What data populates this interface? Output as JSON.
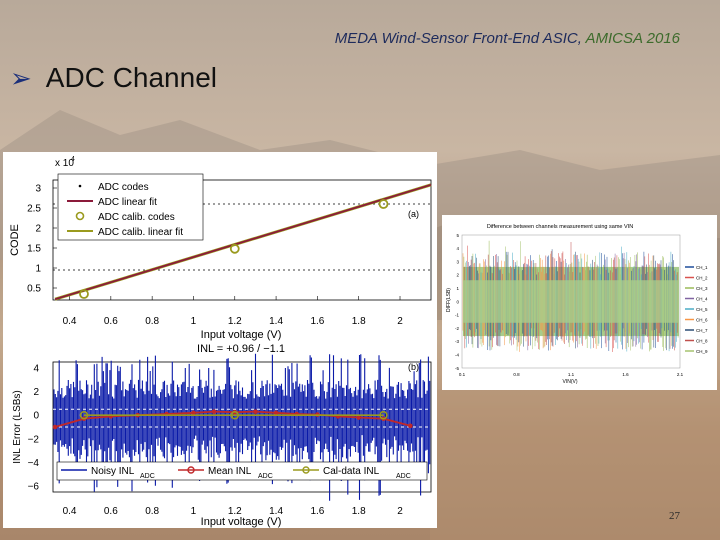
{
  "slide": {
    "header_main": "MEDA Wind-Sensor Front-End ASIC,",
    "header_org": "AMICSA 2016",
    "title_bullet_icon": "arrow-bullet-icon",
    "title": "ADC Channel",
    "page_number": "27"
  },
  "colors": {
    "header_blue": "#1e2b5c",
    "header_green": "#3d6b2c",
    "adc_linear_fit": "#8b1a3a",
    "calib_codes": "#9a9a1e",
    "noisy_inl": "#0a1aa8",
    "mean_inl": "#c0282a"
  },
  "chart_data": [
    {
      "type": "line",
      "panel_label": "(a)",
      "xlabel": "Input voltage (V)",
      "ylabel": "CODE",
      "exponent": "x 10",
      "exponent_power": "4",
      "x_ticks": [
        "0.4",
        "0.6",
        "0.8",
        "1",
        "1.2",
        "1.4",
        "1.6",
        "1.8",
        "2"
      ],
      "y_ticks": [
        "0.5",
        "1",
        "1.5",
        "2",
        "2.5",
        "3"
      ],
      "xlim": [
        0.32,
        2.15
      ],
      "ylim": [
        0.2,
        3.2
      ],
      "inl_text": "INL = +0.96 / −1.1",
      "legend": [
        "ADC codes",
        "ADC linear fit",
        "ADC calib. codes",
        "ADC calib. linear fit"
      ],
      "hlines": [
        0.95,
        2.6
      ],
      "series": [
        {
          "name": "ADC codes",
          "x": [
            0.33,
            2.15
          ],
          "y": [
            0.22,
            3.08
          ]
        },
        {
          "name": "ADC linear fit",
          "x": [
            0.33,
            2.15
          ],
          "y": [
            0.22,
            3.08
          ]
        },
        {
          "name": "ADC calib. codes",
          "x": [
            0.47,
            1.2,
            1.92
          ],
          "y": [
            0.35,
            1.48,
            2.6
          ]
        },
        {
          "name": "ADC calib. linear fit",
          "x": [
            0.33,
            2.15
          ],
          "y": [
            0.22,
            3.08
          ]
        }
      ]
    },
    {
      "type": "line",
      "panel_label": "(b)",
      "xlabel": "Input voltage (V)",
      "ylabel": "INL Error (LSBs)",
      "x_ticks": [
        "0.4",
        "0.6",
        "0.8",
        "1",
        "1.2",
        "1.4",
        "1.6",
        "1.8",
        "2"
      ],
      "y_ticks": [
        "4",
        "2",
        "0",
        "−2",
        "−4",
        "−6"
      ],
      "xlim": [
        0.32,
        2.15
      ],
      "ylim": [
        -6.5,
        4.5
      ],
      "legend": [
        "Noisy INL",
        "Mean INL",
        "Cal-data INL"
      ],
      "legend_subscript": "ADC",
      "hlines": [
        0.5,
        -1.0
      ],
      "series": [
        {
          "name": "Mean INL",
          "x": [
            0.33,
            0.47,
            0.6,
            0.73,
            0.87,
            1.0,
            1.1,
            1.2,
            1.3,
            1.4,
            1.5,
            1.6,
            1.7,
            1.8,
            1.92,
            2.05
          ],
          "y": [
            -1.0,
            -0.3,
            -0.1,
            0.0,
            0.1,
            0.2,
            0.3,
            0.25,
            0.3,
            0.2,
            0.1,
            0.05,
            -0.1,
            -0.2,
            -0.3,
            -0.9
          ]
        },
        {
          "name": "Cal-data INL",
          "x": [
            0.47,
            1.2,
            1.92
          ],
          "y": [
            0.0,
            0.0,
            0.0
          ]
        }
      ]
    },
    {
      "type": "line",
      "title": "Difference between channels measurement using same VIN",
      "ylabel": "DIFF(LSB)",
      "xlabel": "VIN(V)",
      "x_ticks": [
        "0.1",
        "0.8",
        "1.1",
        "1.6",
        "2.1"
      ],
      "y_ticks": [
        "5",
        "4",
        "3",
        "2",
        "1",
        "0",
        "-1",
        "-2",
        "-3",
        "-4",
        "-5"
      ],
      "ylim": [
        -5,
        5
      ],
      "legend": [
        "CH_1",
        "CH_2",
        "CH_3",
        "CH_4",
        "CH_5",
        "CH_6",
        "CH_7",
        "CH_8",
        "CH_9"
      ],
      "legend_colors": [
        "#1f4e9a",
        "#d9534f",
        "#9bbb59",
        "#8064a2",
        "#4bacc6",
        "#f79646",
        "#2c4d75",
        "#c0504d",
        "#a5c36f"
      ]
    }
  ]
}
